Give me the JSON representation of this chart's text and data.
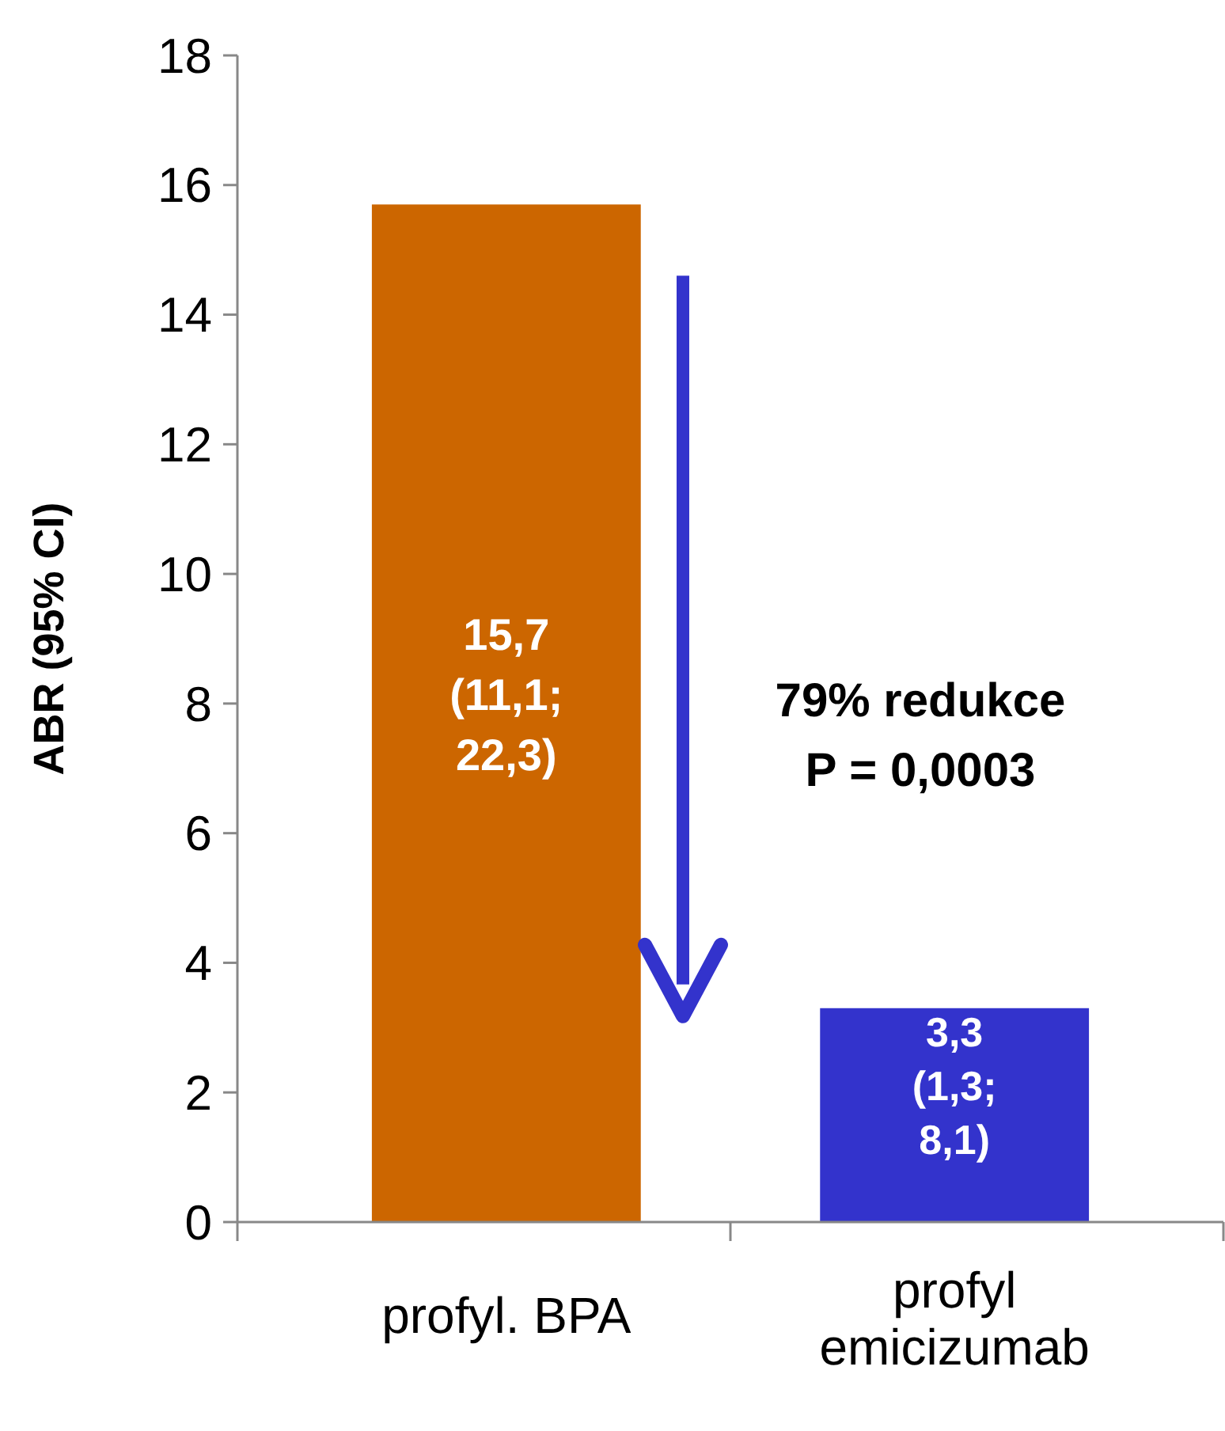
{
  "chart_data": {
    "type": "bar",
    "ylabel": "ABR (95% CI)",
    "categories": [
      "profyl. BPA",
      "profyl emicizumab"
    ],
    "values": [
      15.7,
      3.3
    ],
    "colors": [
      "#cc6600",
      "#3333cc"
    ],
    "value_labels": [
      "15,7 (11,1; 22,3)",
      "3,3 (1,3; 8,1)"
    ],
    "ylim": [
      0,
      18
    ],
    "yticks": [
      0,
      2,
      4,
      6,
      8,
      10,
      12,
      14,
      16,
      18
    ],
    "annotations": [
      "79% redukce",
      "P = 0,0003"
    ],
    "grid": false
  }
}
